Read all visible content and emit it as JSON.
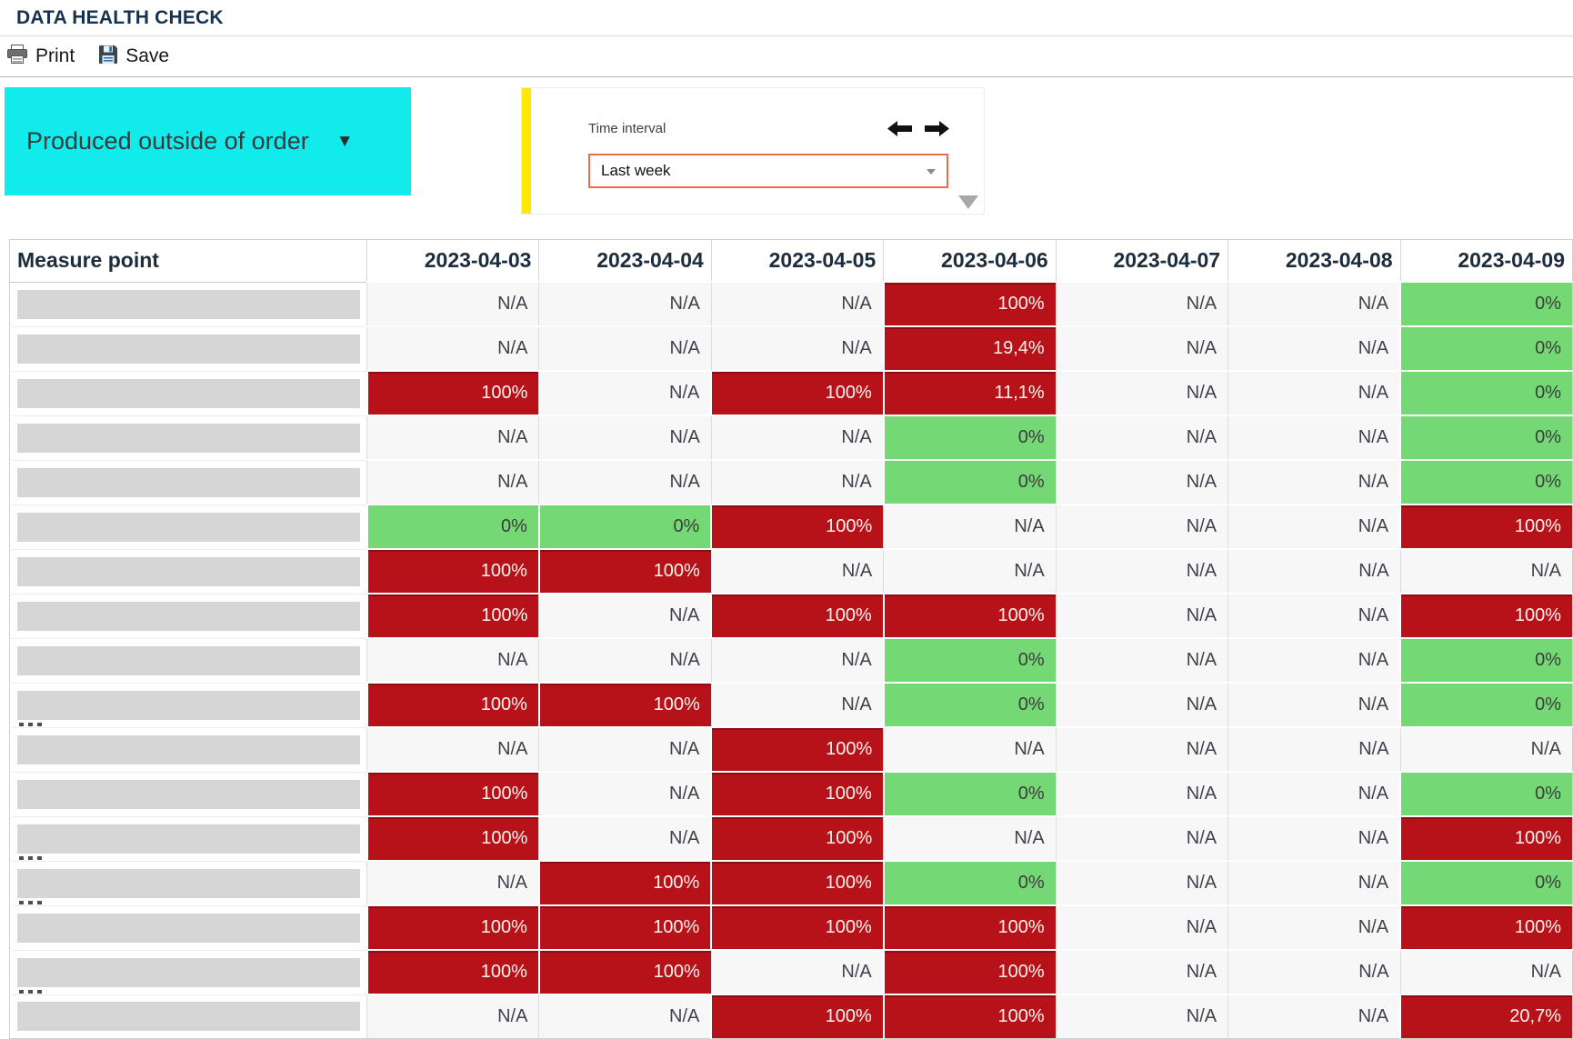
{
  "title": "DATA HEALTH CHECK",
  "toolbar": {
    "print_label": "Print",
    "save_label": "Save",
    "print_icon": "printer-icon",
    "save_icon": "floppy-disk-icon"
  },
  "filter_button": {
    "label": "Produced outside of order",
    "caret": "▼",
    "background_color": "#12ebeb"
  },
  "time_panel": {
    "label": "Time interval",
    "selected_option": "Last week",
    "prev_icon": "left-arrow-icon",
    "next_icon": "right-arrow-icon",
    "accent_bar_color": "#ffe900",
    "select_border_color": "#ed6d49"
  },
  "table": {
    "measure_header": "Measure point",
    "date_headers": [
      "2023-04-03",
      "2023-04-04",
      "2023-04-05",
      "2023-04-06",
      "2023-04-07",
      "2023-04-08",
      "2023-04-09"
    ],
    "status_colors": {
      "bad": "#b7121a",
      "good": "#74d874",
      "na": "#f7f7f7"
    },
    "rows": [
      {
        "cells": [
          {
            "v": "N/A",
            "s": "na"
          },
          {
            "v": "N/A",
            "s": "na"
          },
          {
            "v": "N/A",
            "s": "na"
          },
          {
            "v": "100%",
            "s": "bad"
          },
          {
            "v": "N/A",
            "s": "na"
          },
          {
            "v": "N/A",
            "s": "na"
          },
          {
            "v": "0%",
            "s": "good"
          }
        ]
      },
      {
        "cells": [
          {
            "v": "N/A",
            "s": "na"
          },
          {
            "v": "N/A",
            "s": "na"
          },
          {
            "v": "N/A",
            "s": "na"
          },
          {
            "v": "19,4%",
            "s": "bad"
          },
          {
            "v": "N/A",
            "s": "na"
          },
          {
            "v": "N/A",
            "s": "na"
          },
          {
            "v": "0%",
            "s": "good"
          }
        ]
      },
      {
        "cells": [
          {
            "v": "100%",
            "s": "bad"
          },
          {
            "v": "N/A",
            "s": "na"
          },
          {
            "v": "100%",
            "s": "bad"
          },
          {
            "v": "11,1%",
            "s": "bad"
          },
          {
            "v": "N/A",
            "s": "na"
          },
          {
            "v": "N/A",
            "s": "na"
          },
          {
            "v": "0%",
            "s": "good"
          }
        ]
      },
      {
        "cells": [
          {
            "v": "N/A",
            "s": "na"
          },
          {
            "v": "N/A",
            "s": "na"
          },
          {
            "v": "N/A",
            "s": "na"
          },
          {
            "v": "0%",
            "s": "good"
          },
          {
            "v": "N/A",
            "s": "na"
          },
          {
            "v": "N/A",
            "s": "na"
          },
          {
            "v": "0%",
            "s": "good"
          }
        ]
      },
      {
        "cells": [
          {
            "v": "N/A",
            "s": "na"
          },
          {
            "v": "N/A",
            "s": "na"
          },
          {
            "v": "N/A",
            "s": "na"
          },
          {
            "v": "0%",
            "s": "good"
          },
          {
            "v": "N/A",
            "s": "na"
          },
          {
            "v": "N/A",
            "s": "na"
          },
          {
            "v": "0%",
            "s": "good"
          }
        ]
      },
      {
        "cells": [
          {
            "v": "0%",
            "s": "good"
          },
          {
            "v": "0%",
            "s": "good"
          },
          {
            "v": "100%",
            "s": "bad"
          },
          {
            "v": "N/A",
            "s": "na"
          },
          {
            "v": "N/A",
            "s": "na"
          },
          {
            "v": "N/A",
            "s": "na"
          },
          {
            "v": "100%",
            "s": "bad"
          }
        ]
      },
      {
        "cells": [
          {
            "v": "100%",
            "s": "bad"
          },
          {
            "v": "100%",
            "s": "bad"
          },
          {
            "v": "N/A",
            "s": "na"
          },
          {
            "v": "N/A",
            "s": "na"
          },
          {
            "v": "N/A",
            "s": "na"
          },
          {
            "v": "N/A",
            "s": "na"
          },
          {
            "v": "N/A",
            "s": "na"
          }
        ]
      },
      {
        "cells": [
          {
            "v": "100%",
            "s": "bad"
          },
          {
            "v": "N/A",
            "s": "na"
          },
          {
            "v": "100%",
            "s": "bad"
          },
          {
            "v": "100%",
            "s": "bad"
          },
          {
            "v": "N/A",
            "s": "na"
          },
          {
            "v": "N/A",
            "s": "na"
          },
          {
            "v": "100%",
            "s": "bad"
          }
        ]
      },
      {
        "cells": [
          {
            "v": "N/A",
            "s": "na"
          },
          {
            "v": "N/A",
            "s": "na"
          },
          {
            "v": "N/A",
            "s": "na"
          },
          {
            "v": "0%",
            "s": "good"
          },
          {
            "v": "N/A",
            "s": "na"
          },
          {
            "v": "N/A",
            "s": "na"
          },
          {
            "v": "0%",
            "s": "good"
          }
        ]
      },
      {
        "remnant": true,
        "cells": [
          {
            "v": "100%",
            "s": "bad"
          },
          {
            "v": "100%",
            "s": "bad"
          },
          {
            "v": "N/A",
            "s": "na"
          },
          {
            "v": "0%",
            "s": "good"
          },
          {
            "v": "N/A",
            "s": "na"
          },
          {
            "v": "N/A",
            "s": "na"
          },
          {
            "v": "0%",
            "s": "good"
          }
        ]
      },
      {
        "cells": [
          {
            "v": "N/A",
            "s": "na"
          },
          {
            "v": "N/A",
            "s": "na"
          },
          {
            "v": "100%",
            "s": "bad"
          },
          {
            "v": "N/A",
            "s": "na"
          },
          {
            "v": "N/A",
            "s": "na"
          },
          {
            "v": "N/A",
            "s": "na"
          },
          {
            "v": "N/A",
            "s": "na"
          }
        ]
      },
      {
        "cells": [
          {
            "v": "100%",
            "s": "bad"
          },
          {
            "v": "N/A",
            "s": "na"
          },
          {
            "v": "100%",
            "s": "bad"
          },
          {
            "v": "0%",
            "s": "good"
          },
          {
            "v": "N/A",
            "s": "na"
          },
          {
            "v": "N/A",
            "s": "na"
          },
          {
            "v": "0%",
            "s": "good"
          }
        ]
      },
      {
        "remnant": true,
        "cells": [
          {
            "v": "100%",
            "s": "bad"
          },
          {
            "v": "N/A",
            "s": "na"
          },
          {
            "v": "100%",
            "s": "bad"
          },
          {
            "v": "N/A",
            "s": "na"
          },
          {
            "v": "N/A",
            "s": "na"
          },
          {
            "v": "N/A",
            "s": "na"
          },
          {
            "v": "100%",
            "s": "bad"
          }
        ]
      },
      {
        "remnant": true,
        "cells": [
          {
            "v": "N/A",
            "s": "na"
          },
          {
            "v": "100%",
            "s": "bad"
          },
          {
            "v": "100%",
            "s": "bad"
          },
          {
            "v": "0%",
            "s": "good"
          },
          {
            "v": "N/A",
            "s": "na"
          },
          {
            "v": "N/A",
            "s": "na"
          },
          {
            "v": "0%",
            "s": "good"
          }
        ]
      },
      {
        "cells": [
          {
            "v": "100%",
            "s": "bad"
          },
          {
            "v": "100%",
            "s": "bad"
          },
          {
            "v": "100%",
            "s": "bad"
          },
          {
            "v": "100%",
            "s": "bad"
          },
          {
            "v": "N/A",
            "s": "na"
          },
          {
            "v": "N/A",
            "s": "na"
          },
          {
            "v": "100%",
            "s": "bad"
          }
        ]
      },
      {
        "remnant": true,
        "cells": [
          {
            "v": "100%",
            "s": "bad"
          },
          {
            "v": "100%",
            "s": "bad"
          },
          {
            "v": "N/A",
            "s": "na"
          },
          {
            "v": "100%",
            "s": "bad"
          },
          {
            "v": "N/A",
            "s": "na"
          },
          {
            "v": "N/A",
            "s": "na"
          },
          {
            "v": "N/A",
            "s": "na"
          }
        ]
      },
      {
        "cells": [
          {
            "v": "N/A",
            "s": "na"
          },
          {
            "v": "N/A",
            "s": "na"
          },
          {
            "v": "100%",
            "s": "bad"
          },
          {
            "v": "100%",
            "s": "bad"
          },
          {
            "v": "N/A",
            "s": "na"
          },
          {
            "v": "N/A",
            "s": "na"
          },
          {
            "v": "20,7%",
            "s": "bad"
          }
        ]
      }
    ]
  }
}
